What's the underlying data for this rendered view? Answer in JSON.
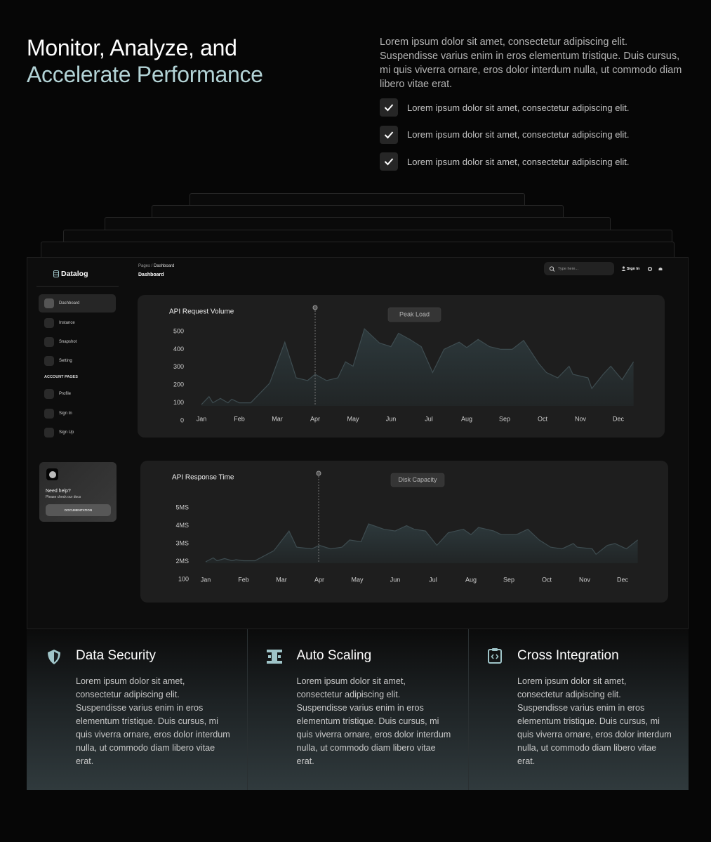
{
  "hero": {
    "title_line1": "Monitor, Analyze, and",
    "title_line2": "Accelerate Performance",
    "description": "Lorem ipsum dolor sit amet, consectetur adipiscing elit. Suspendisse varius enim in eros elementum tristique. Duis cursus, mi quis viverra ornare, eros dolor interdum nulla, ut commodo diam libero vitae erat.",
    "checklist": [
      "Lorem ipsum dolor sit amet, consectetur adipiscing elit.",
      "Lorem ipsum dolor sit amet, consectetur adipiscing elit.",
      "Lorem ipsum dolor sit amet, consectetur adipiscing elit."
    ]
  },
  "dashboard": {
    "brand": "Datalog",
    "breadcrumb": [
      "Pages",
      "Dashboard"
    ],
    "page_title": "Dashboard",
    "search_placeholder": "Type here...",
    "sign_in": "Sign In",
    "nav": [
      "Dashboard",
      "Instance",
      "Snapshot",
      "Setting"
    ],
    "account_heading": "ACCOUNT PAGES",
    "account_nav": [
      "Profile",
      "Sign In",
      "Sign Up"
    ],
    "help": {
      "title": "Need help?",
      "text": "Please check our docs",
      "button": "DOCUMENTATION"
    }
  },
  "chart_data": [
    {
      "type": "area",
      "title": "API Request Volume",
      "annotation": "Peak Load",
      "color": "#3e4c50",
      "x": [
        0.0,
        0.2,
        0.3,
        0.5,
        0.7,
        0.8,
        1.0,
        1.2,
        1.3,
        1.8,
        2.2,
        2.5,
        2.8,
        3.0,
        3.3,
        3.6,
        3.8,
        4.0,
        4.3,
        4.7,
        5.0,
        5.2,
        5.5,
        5.8,
        6.1,
        6.4,
        6.8,
        7.0,
        7.3,
        7.6,
        7.9,
        8.2,
        8.5,
        8.9,
        9.1,
        9.4,
        9.7,
        9.8,
        10.2,
        10.3,
        10.6,
        10.8,
        11.1,
        11.4
      ],
      "values": [
        90,
        135,
        100,
        125,
        100,
        120,
        100,
        100,
        100,
        210,
        440,
        240,
        225,
        260,
        225,
        240,
        330,
        305,
        515,
        435,
        415,
        490,
        455,
        415,
        270,
        400,
        440,
        410,
        455,
        415,
        400,
        400,
        450,
        320,
        270,
        240,
        305,
        260,
        240,
        180,
        260,
        305,
        230,
        330
      ],
      "xlim": [
        0,
        11.4
      ],
      "xticks": [
        {
          "value": 0,
          "label": "Jan"
        },
        {
          "value": 1,
          "label": "Feb"
        },
        {
          "value": 2,
          "label": "Mar"
        },
        {
          "value": 3,
          "label": "Apr"
        },
        {
          "value": 4,
          "label": "May"
        },
        {
          "value": 5,
          "label": "Jun"
        },
        {
          "value": 6,
          "label": "Jul"
        },
        {
          "value": 7,
          "label": "Aug"
        },
        {
          "value": 8,
          "label": "Sep"
        },
        {
          "value": 9,
          "label": "Oct"
        },
        {
          "value": 10,
          "label": "Nov"
        },
        {
          "value": 11,
          "label": "Dec"
        }
      ],
      "ylim": [
        0,
        500
      ],
      "yticks": [
        0,
        100,
        200,
        300,
        400,
        500
      ]
    },
    {
      "type": "area",
      "title": "API Response Time",
      "annotation": "Disk Capacity",
      "color": "#3e4c50",
      "x": [
        0.0,
        0.2,
        0.3,
        0.5,
        0.7,
        0.8,
        1.0,
        1.3,
        1.8,
        2.2,
        2.4,
        2.8,
        3.0,
        3.3,
        3.6,
        3.8,
        4.1,
        4.3,
        4.7,
        5.0,
        5.3,
        5.5,
        5.8,
        6.1,
        6.4,
        6.8,
        7.0,
        7.2,
        7.6,
        7.8,
        8.2,
        8.5,
        8.8,
        9.1,
        9.4,
        9.7,
        9.8,
        10.2,
        10.3,
        10.6,
        10.8,
        11.1,
        11.4
      ],
      "values": [
        1.98,
        2.2,
        2.04,
        2.16,
        2.04,
        2.1,
        2.04,
        2.04,
        2.6,
        3.7,
        2.8,
        2.7,
        2.9,
        2.7,
        2.8,
        3.2,
        3.1,
        4.1,
        3.8,
        3.7,
        4.0,
        3.8,
        3.7,
        2.9,
        3.6,
        3.8,
        3.5,
        3.9,
        3.7,
        3.5,
        3.5,
        3.8,
        3.2,
        2.8,
        2.7,
        3.0,
        2.8,
        2.7,
        2.4,
        2.9,
        3.0,
        2.7,
        3.2
      ],
      "xlim": [
        0,
        11.4
      ],
      "xticks": [
        {
          "value": 0,
          "label": "Jan"
        },
        {
          "value": 1,
          "label": "Feb"
        },
        {
          "value": 2,
          "label": "Mar"
        },
        {
          "value": 3,
          "label": "Apr"
        },
        {
          "value": 4,
          "label": "May"
        },
        {
          "value": 5,
          "label": "Jun"
        },
        {
          "value": 6,
          "label": "Jul"
        },
        {
          "value": 7,
          "label": "Aug"
        },
        {
          "value": 8,
          "label": "Sep"
        },
        {
          "value": 9,
          "label": "Oct"
        },
        {
          "value": 10,
          "label": "Nov"
        },
        {
          "value": 11,
          "label": "Dec"
        }
      ],
      "ylim": [
        1,
        5
      ],
      "yticks": [
        {
          "value": 1,
          "label": "100"
        },
        {
          "value": 2,
          "label": "2MS"
        },
        {
          "value": 3,
          "label": "3MS"
        },
        {
          "value": 4,
          "label": "4MS"
        },
        {
          "value": 5,
          "label": "5MS"
        }
      ]
    }
  ],
  "features": [
    {
      "title": "Data Security",
      "text": "Lorem ipsum dolor sit amet, consectetur adipiscing elit. Suspendisse varius enim in eros elementum tristique. Duis cursus, mi quis viverra ornare, eros dolor interdum nulla, ut commodo diam libero vitae erat."
    },
    {
      "title": "Auto Scaling",
      "text": "Lorem ipsum dolor sit amet, consectetur adipiscing elit. Suspendisse varius enim in eros elementum tristique. Duis cursus, mi quis viverra ornare, eros dolor interdum nulla, ut commodo diam libero vitae erat."
    },
    {
      "title": "Cross Integration",
      "text": "Lorem ipsum dolor sit amet, consectetur adipiscing elit. Suspendisse varius enim in eros elementum tristique. Duis cursus, mi quis viverra ornare, eros dolor interdum nulla, ut commodo diam libero vitae erat."
    }
  ]
}
